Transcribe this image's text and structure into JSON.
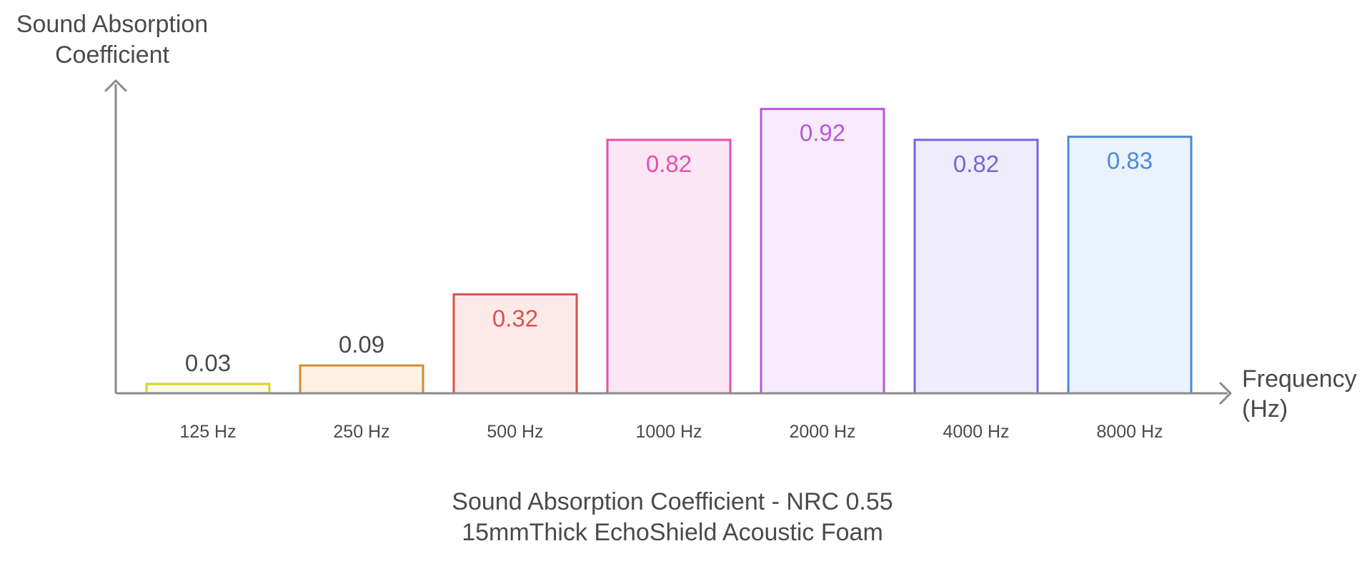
{
  "chart_data": {
    "type": "bar",
    "title_lines": [
      "Sound Absorption Coefficient - NRC 0.55",
      "15mmThick EchoShield Acoustic Foam"
    ],
    "ylabel_lines": [
      "Sound Absorption",
      "Coefficient"
    ],
    "xlabel_lines": [
      "Frequency",
      "(Hz)"
    ],
    "categories": [
      "125 Hz",
      "250 Hz",
      "500 Hz",
      "1000 Hz",
      "2000 Hz",
      "4000 Hz",
      "8000 Hz"
    ],
    "values": [
      0.03,
      0.09,
      0.32,
      0.82,
      0.92,
      0.82,
      0.83
    ],
    "value_labels": [
      "0.03",
      "0.09",
      "0.32",
      "0.82",
      "0.92",
      "0.82",
      "0.83"
    ],
    "ylim": [
      0,
      1
    ],
    "grid": false,
    "legend": "none",
    "colors": {
      "stroke": [
        "#dccd2a",
        "#d48a3a",
        "#d9524d",
        "#e052b0",
        "#b857d8",
        "#7a62d9",
        "#4a8ad9"
      ],
      "fill": [
        "#fdfbe3",
        "#fdf1e3",
        "#fdeae8",
        "#fde6f4",
        "#f7ebfb",
        "#efedfc",
        "#eaf2fc"
      ],
      "label": [
        "#4a4a4a",
        "#4a4a4a",
        "#d9524d",
        "#e052b0",
        "#b857d8",
        "#7a62d9",
        "#4a8ad9"
      ],
      "axis": "#8a8a8a"
    }
  }
}
